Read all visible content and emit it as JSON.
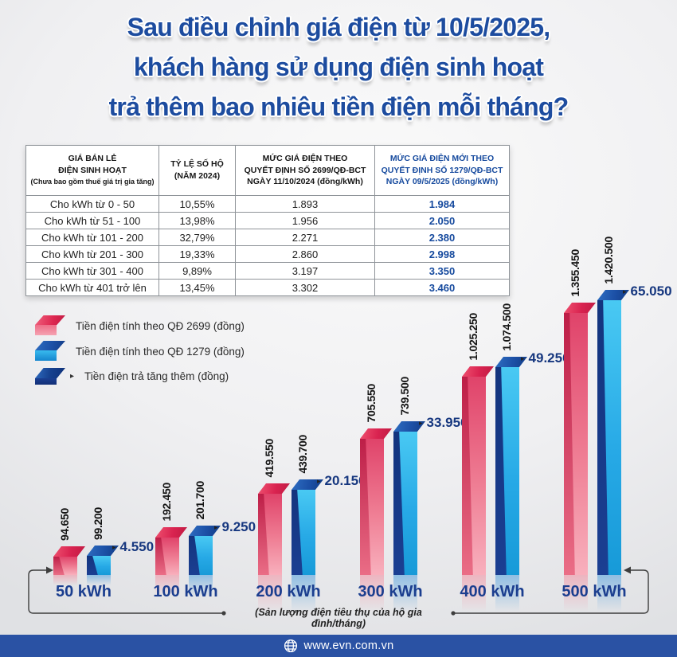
{
  "title": {
    "lines": [
      "Sau điều chỉnh giá điện từ 10/5/2025,",
      "khách hàng sử dụng điện sinh hoạt",
      "trả thêm bao nhiêu tiền điện mỗi tháng?"
    ]
  },
  "table": {
    "headers": [
      {
        "lines": [
          "GIÁ BÁN LẺ",
          "ĐIỆN SINH HOẠT",
          "(Chưa bao gồm thuế giá trị gia tăng)"
        ],
        "accent": false
      },
      {
        "lines": [
          "TỶ LỆ SỐ HỘ",
          "(NĂM 2024)"
        ],
        "accent": false
      },
      {
        "lines": [
          "MỨC GIÁ ĐIỆN THEO",
          "QUYẾT ĐỊNH SỐ 2699/QĐ-BCT",
          "NGÀY 11/10/2024 (đồng/kWh)"
        ],
        "accent": false
      },
      {
        "lines": [
          "MỨC GIÁ ĐIỆN MỚI THEO",
          "QUYẾT ĐỊNH SỐ 1279/QĐ-BCT",
          "NGÀY 09/5/2025 (đồng/kWh)"
        ],
        "accent": true
      }
    ],
    "rows": [
      [
        "Cho kWh từ 0 - 50",
        "10,55%",
        "1.893",
        "1.984"
      ],
      [
        "Cho kWh từ 51 - 100",
        "13,98%",
        "1.956",
        "2.050"
      ],
      [
        "Cho kWh từ 101 - 200",
        "32,79%",
        "2.271",
        "2.380"
      ],
      [
        "Cho kWh từ 201 - 300",
        "19,33%",
        "2.860",
        "2.998"
      ],
      [
        "Cho kWh từ 301 - 400",
        "9,89%",
        "3.197",
        "3.350"
      ],
      [
        "Cho kWh từ 401 trở lên",
        "13,45%",
        "3.302",
        "3.460"
      ]
    ]
  },
  "legend": {
    "items": [
      {
        "label": "Tiền điện tính theo QĐ 2699 (đồng)",
        "swatch": "pink",
        "arrow": false
      },
      {
        "label": "Tiền điện tính theo QĐ 1279 (đồng)",
        "swatch": "blue",
        "arrow": false
      },
      {
        "label": "Tiền điện trả tăng thêm (đồng)",
        "swatch": "navy",
        "arrow": true
      }
    ]
  },
  "chart_data": {
    "type": "bar",
    "categories": [
      "50 kWh",
      "100 kWh",
      "200 kWh",
      "300 kWh",
      "400 kWh",
      "500 kWh"
    ],
    "series": [
      {
        "name": "Tiền điện tính theo QĐ 2699 (đồng)",
        "color": "#e84a70",
        "values": [
          94650,
          192450,
          419550,
          705550,
          1025250,
          1355450
        ],
        "labels": [
          "94.650",
          "192.450",
          "419.550",
          "705.550",
          "1.025.250",
          "1.355.450"
        ]
      },
      {
        "name": "Tiền điện tính theo QĐ 1279 (đồng)",
        "color": "#27a9e6",
        "values": [
          99200,
          201700,
          439700,
          739500,
          1074500,
          1420500
        ],
        "labels": [
          "99.200",
          "201.700",
          "439.700",
          "739.500",
          "1.074.500",
          "1.420.500"
        ]
      }
    ],
    "difference": {
      "name": "Tiền điện trả tăng thêm (đồng)",
      "color": "#16377f",
      "values": [
        4550,
        9250,
        20150,
        33950,
        49250,
        65050
      ],
      "labels": [
        "4.550",
        "9.250",
        "20.150",
        "33.950",
        "49.250",
        "65.050"
      ]
    },
    "xlabel": "(Sản lượng điện tiêu thụ của hộ gia đình/tháng)",
    "ylim": [
      0,
      1420500
    ],
    "grid": false,
    "legend_position": "top-left"
  },
  "footer": {
    "website": "www.evn.com.vn"
  },
  "colors": {
    "title_blue": "#1d4c9f",
    "table_accent_blue": "#164a9e",
    "category_blue": "#1b3e8f",
    "diff_navy": "#16377f",
    "pink_series": "#e84a70",
    "blue_series": "#27a9e6",
    "footer_bg": "#2a52a4"
  }
}
